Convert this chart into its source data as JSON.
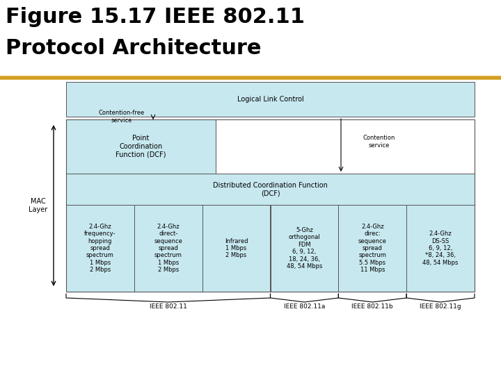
{
  "title_line1": "Figure 15.17 IEEE 802.11",
  "title_line2": "Protocol Architecture",
  "title_color": "#000000",
  "gold_line_color": "#d4a020",
  "box_fill": "#c8e8f0",
  "box_edge": "#555555",
  "bg_color": "#ffffff",
  "llc_text": "Logical Link Control",
  "pcf_text": "Point\nCoordination\nFunction (DCF)",
  "dcf_text": "Distributed Coordination Function\n(DCF)",
  "contention_free_label": "Contention-free\nservice",
  "contention_label": "Contention\nservice",
  "mac_layer_label": "MAC\nLayer",
  "phy_boxes": [
    "2.4-Ghz\nfrequency-\nhopping\nspread\nspectrum\n1 Mbps\n2 Mbps",
    "2.4-Ghz\ndirect-\nsequence\nspread\nspectrum\n1 Mbps\n2 Mbps",
    "Infrared\n1 Mbps\n2 Mbps",
    "5-Ghz\northogonal\nFDM\n6, 9, 12,\n18, 24, 36,\n48, 54 Mbps",
    "2.4-Ghz\ndirec:\nsequence\nspread\nspectrum\n5.5 Mbps\n11 Mbps",
    "2.4-Ghz\nDS-SS\n6, 9, 12,\n*8, 24, 36,\n48, 54 Mbps"
  ],
  "title_fontsize": 22,
  "diagram_fontsize": 7,
  "phy_fontsize": 6
}
